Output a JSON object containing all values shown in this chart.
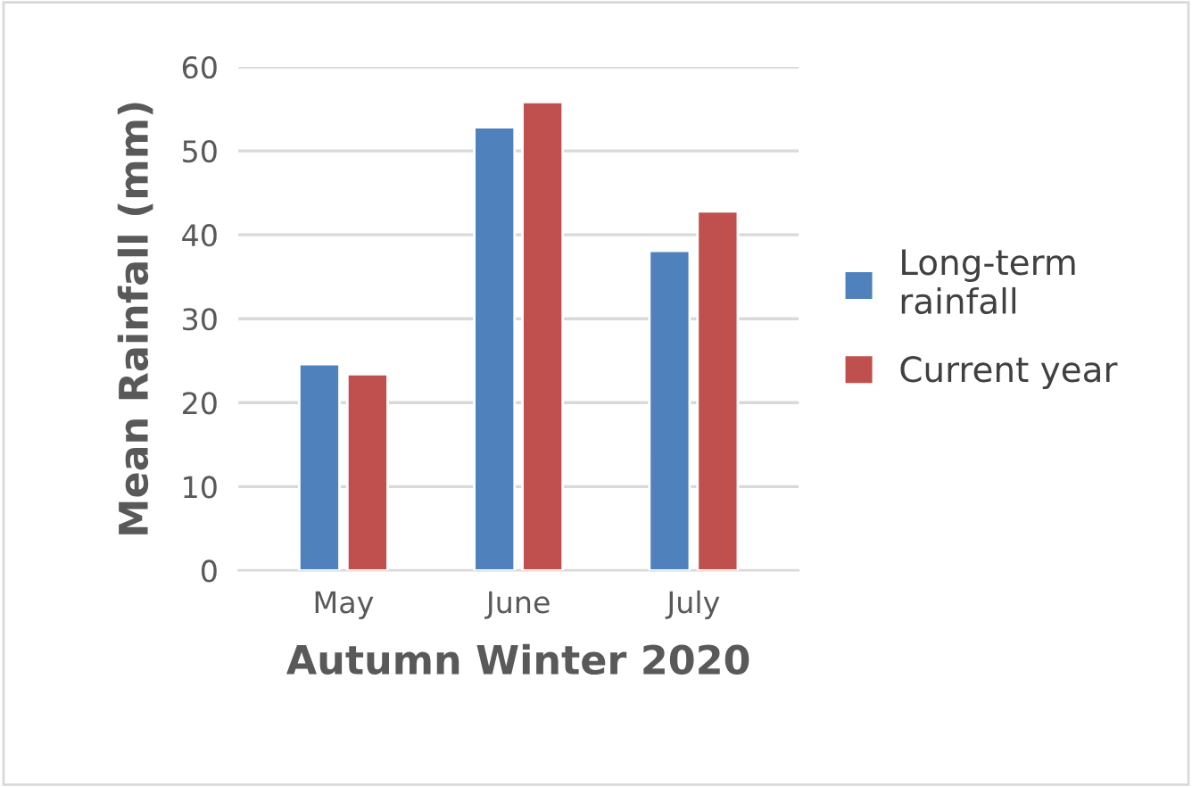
{
  "chart_data": {
    "type": "bar",
    "xlabel": "Autumn Winter 2020",
    "ylabel": "Mean Rainfall (mm)",
    "categories": [
      "May",
      "June",
      "July"
    ],
    "series": [
      {
        "name": "Long-term\nrainfall",
        "color": "#4f81bd",
        "values": [
          24.6,
          52.8,
          38.1
        ]
      },
      {
        "name": "Current year",
        "color": "#c0504d",
        "values": [
          23.4,
          55.8,
          42.8
        ]
      }
    ],
    "ylim": [
      0,
      60
    ],
    "yticks": [
      0,
      10,
      20,
      30,
      40,
      50,
      60
    ],
    "grid": "y",
    "legend": "right"
  }
}
